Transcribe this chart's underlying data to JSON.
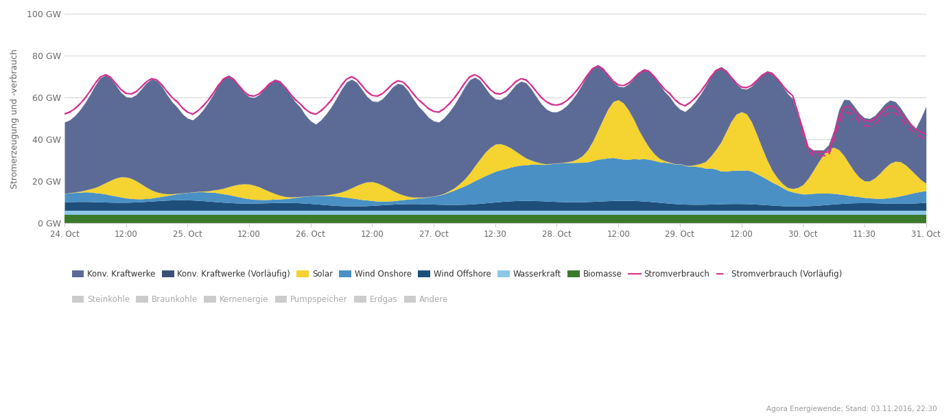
{
  "ylabel": "Stromerzeugung und -verbrauch",
  "ylim": [
    0,
    100
  ],
  "yticks": [
    0,
    20,
    40,
    60,
    80,
    100
  ],
  "ytick_labels": [
    "0 GW",
    "20 GW",
    "40 GW",
    "60 GW",
    "80 GW",
    "100 GW"
  ],
  "plot_bg_color": "#ffffff",
  "colors": {
    "konv_kraftwerke": "#5c6b96",
    "solar": "#f5d330",
    "wind_onshore": "#4a90c4",
    "wind_offshore": "#1e4f7a",
    "wasserkraft": "#8ec8e8",
    "biomasse": "#3a7a2a",
    "stromverbrauch": "#d63090",
    "stromverbrauch_vorl": "#d63090"
  },
  "footnote": "Agora Energiewende; Stand: 03.11.2016, 22:30"
}
